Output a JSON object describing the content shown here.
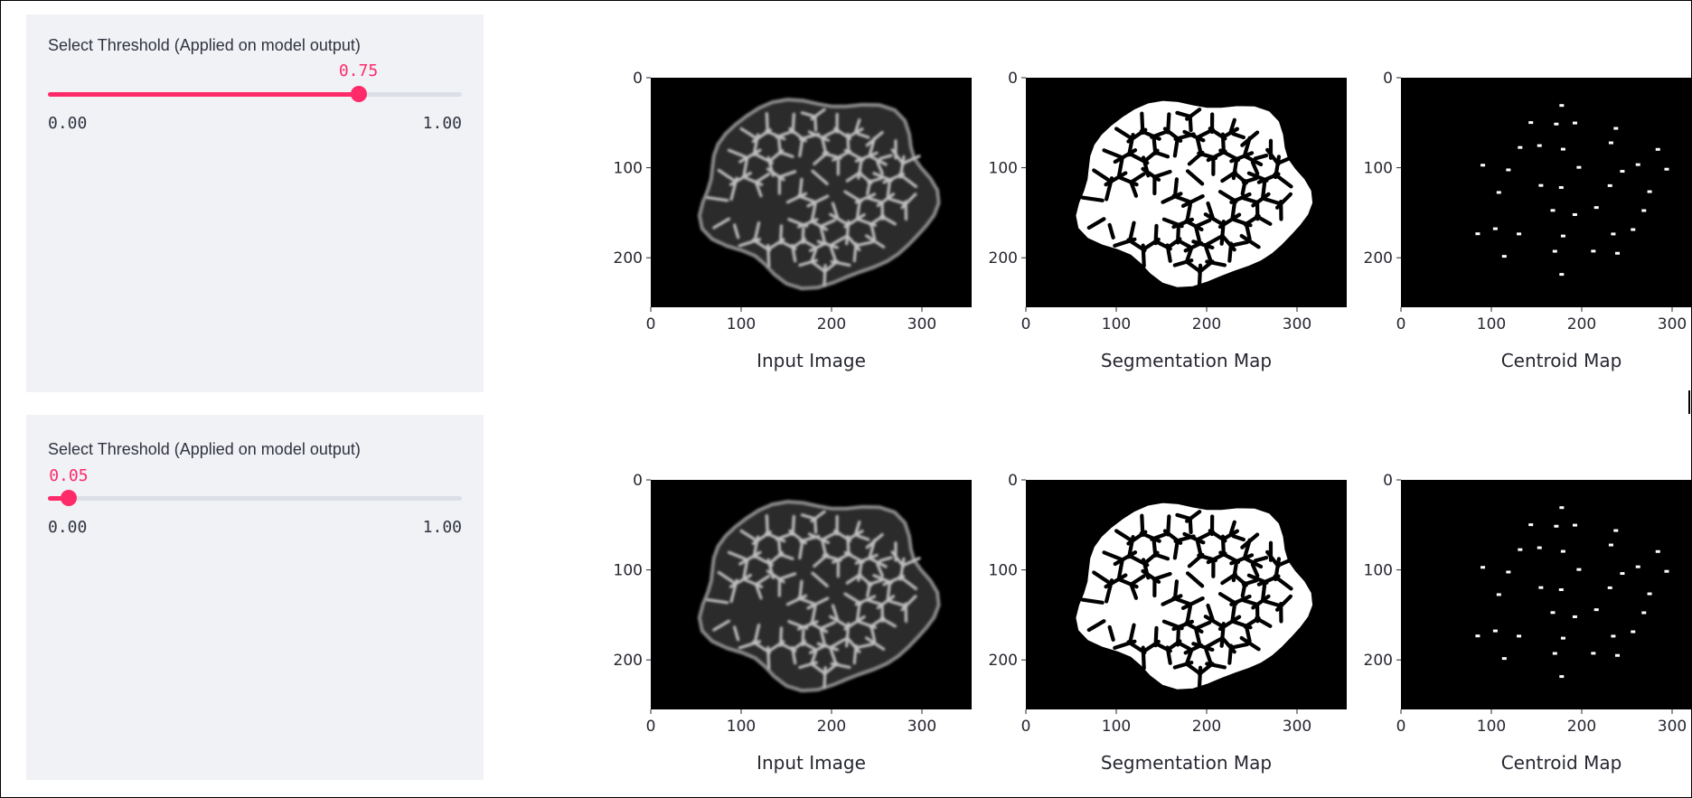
{
  "controls": [
    {
      "label": "Select Threshold (Applied on model output)",
      "value": 0.75,
      "value_text": "0.75",
      "min_text": "0.00",
      "max_text": "1.00"
    },
    {
      "label": "Select Threshold (Applied on model output)",
      "value": 0.05,
      "value_text": "0.05",
      "min_text": "0.00",
      "max_text": "1.00"
    }
  ],
  "colors": {
    "accent": "#ff2a6a",
    "track": "#dcdfe8",
    "panel_bg": "#f0f2f6",
    "image_bg": "#000000"
  },
  "row1": {
    "plots": [
      {
        "caption": "Input Image",
        "image": "grayscale microscopy cell membranes",
        "y_ticks": [
          "0",
          "100",
          "200"
        ],
        "x_ticks": [
          "0",
          "100",
          "200",
          "300"
        ]
      },
      {
        "caption": "Segmentation Map",
        "image": "binary cell segmentation mask",
        "y_ticks": [
          "0",
          "100",
          "200"
        ],
        "x_ticks": [
          "0",
          "100",
          "200",
          "300"
        ]
      },
      {
        "caption": "Centroid Map",
        "image": "cell centroid dots",
        "y_ticks": [
          "0",
          "100",
          "200"
        ],
        "x_ticks": [
          "0",
          "100",
          "200",
          "300"
        ]
      }
    ]
  },
  "row2": {
    "plots": [
      {
        "caption": "Input Image",
        "image": "grayscale microscopy cell membranes",
        "y_ticks": [
          "0",
          "100",
          "200"
        ],
        "x_ticks": [
          "0",
          "100",
          "200",
          "300"
        ]
      },
      {
        "caption": "Segmentation Map",
        "image": "binary cell segmentation mask",
        "y_ticks": [
          "0",
          "100",
          "200"
        ],
        "x_ticks": [
          "0",
          "100",
          "200",
          "300"
        ]
      },
      {
        "caption": "Centroid Map",
        "image": "cell centroid dots",
        "y_ticks": [
          "0",
          "100",
          "200"
        ],
        "x_ticks": [
          "0",
          "100",
          "200",
          "300"
        ]
      }
    ]
  }
}
